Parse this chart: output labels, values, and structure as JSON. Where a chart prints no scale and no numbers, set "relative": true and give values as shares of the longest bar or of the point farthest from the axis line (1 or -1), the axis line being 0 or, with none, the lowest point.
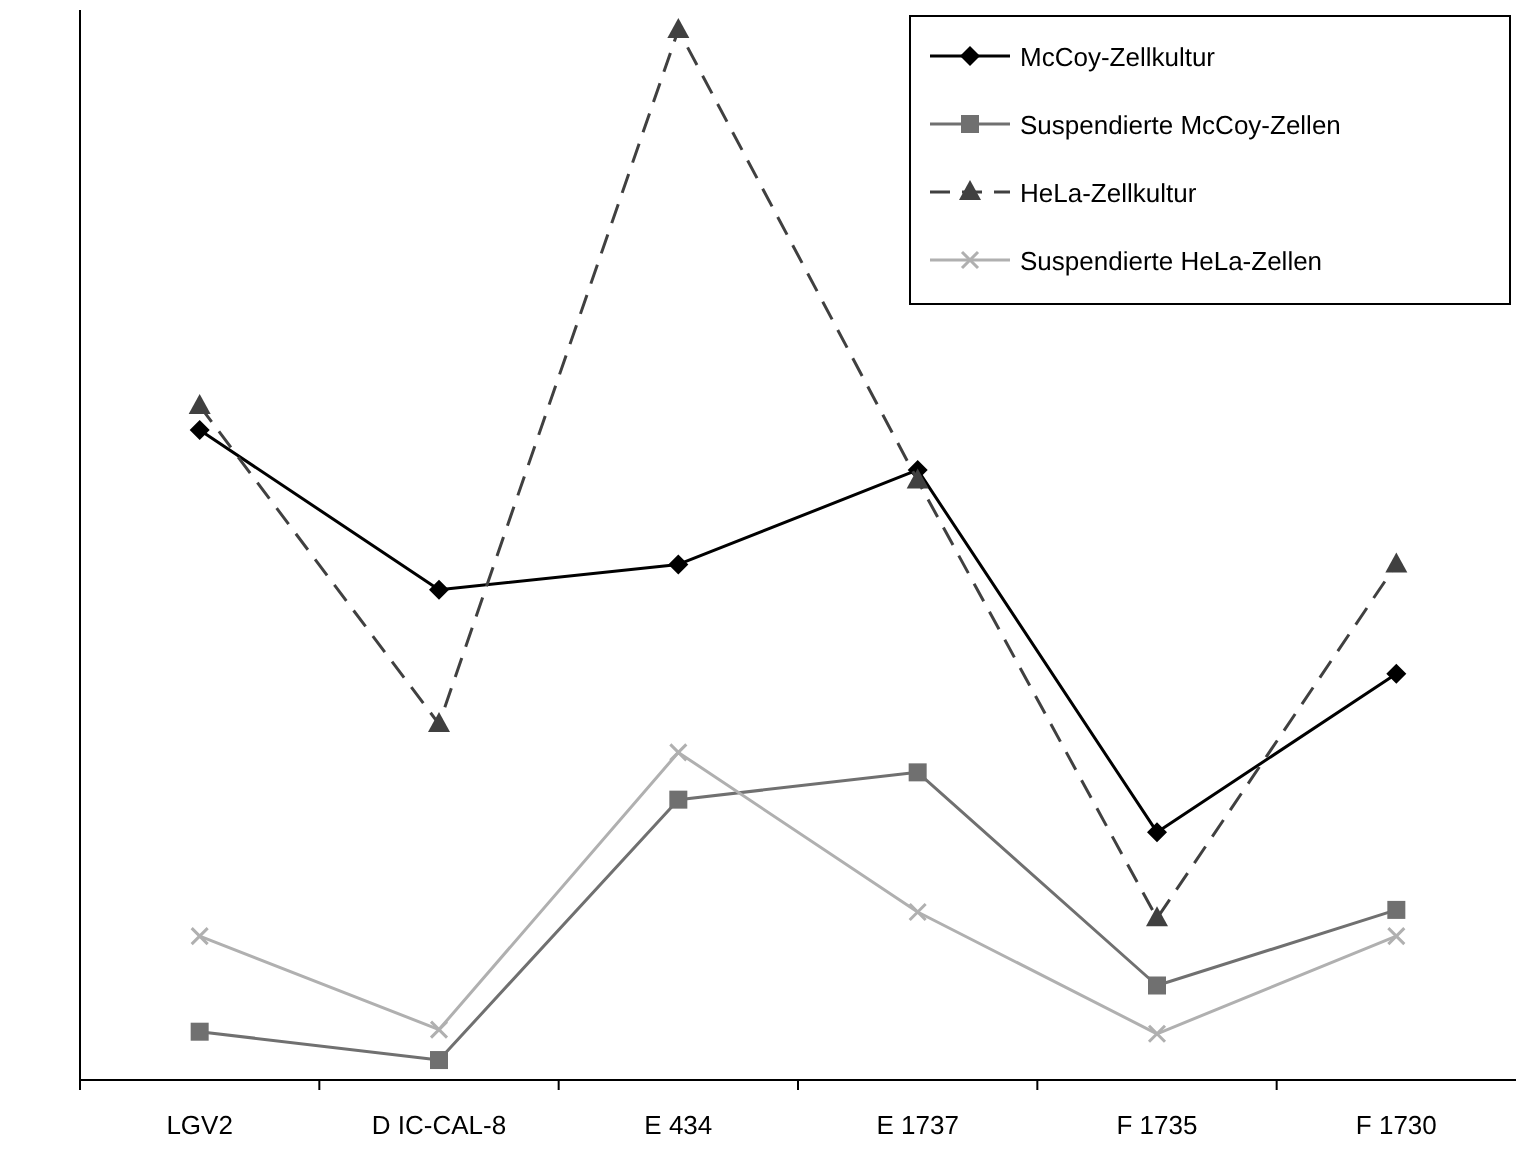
{
  "chart_data": {
    "type": "line",
    "relative": true,
    "categories": [
      "LGV2",
      "D IC-CAL-8",
      "E 434",
      "E 1737",
      "F 1735",
      "F 1730"
    ],
    "series": [
      {
        "name": "McCoy-Zellkultur",
        "color": "#000000",
        "marker": "diamond",
        "line_style": "solid",
        "values": [
          0.619,
          0.467,
          0.491,
          0.581,
          0.236,
          0.387
        ]
      },
      {
        "name": "Suspendierte McCoy-Zellen",
        "color": "#707070",
        "marker": "square",
        "line_style": "solid",
        "values": [
          0.046,
          0.019,
          0.267,
          0.293,
          0.09,
          0.162
        ]
      },
      {
        "name": "HeLa-Zellkultur",
        "color": "#404040",
        "marker": "triangle",
        "line_style": "dashed",
        "values": [
          0.642,
          0.339,
          1,
          0.571,
          0.154,
          0.491
        ]
      },
      {
        "name": "Suspendierte HeLa-Zellen",
        "color": "#b0b0b0",
        "marker": "cross",
        "line_style": "solid",
        "values": [
          0.137,
          0.048,
          0.312,
          0.16,
          0.044,
          0.137
        ]
      }
    ],
    "legend": "top right"
  }
}
